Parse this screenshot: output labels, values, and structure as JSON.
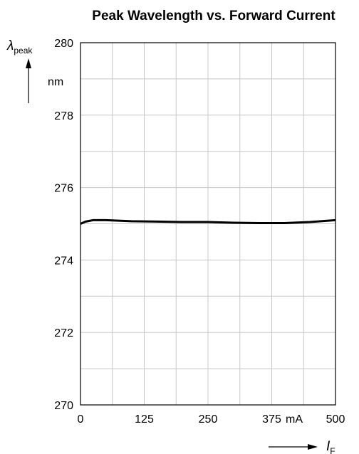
{
  "chart_data": {
    "type": "line",
    "title": "Peak Wavelength vs. Forward Current",
    "xlabel": {
      "symbol": "I",
      "subscript": "F"
    },
    "ylabel": {
      "symbol": "λ",
      "subscript": "peak"
    },
    "x_unit": "mA",
    "y_unit": "nm",
    "xlim": [
      0,
      500
    ],
    "ylim": [
      270,
      280
    ],
    "x_ticks": [
      0,
      125,
      250,
      375,
      500
    ],
    "x_tick_labels": [
      "0",
      "125",
      "250",
      "375",
      "500"
    ],
    "y_ticks": [
      270,
      272,
      274,
      276,
      278,
      280
    ],
    "y_tick_labels": [
      "270",
      "272",
      "274",
      "276",
      "278",
      "280"
    ],
    "grid": true,
    "series": [
      {
        "color": "#000000",
        "x": [
          0,
          10,
          25,
          50,
          100,
          150,
          200,
          250,
          300,
          350,
          400,
          450,
          500
        ],
        "y": [
          275.0,
          275.06,
          275.1,
          275.1,
          275.07,
          275.06,
          275.05,
          275.05,
          275.03,
          275.02,
          275.02,
          275.05,
          275.1
        ]
      }
    ]
  }
}
